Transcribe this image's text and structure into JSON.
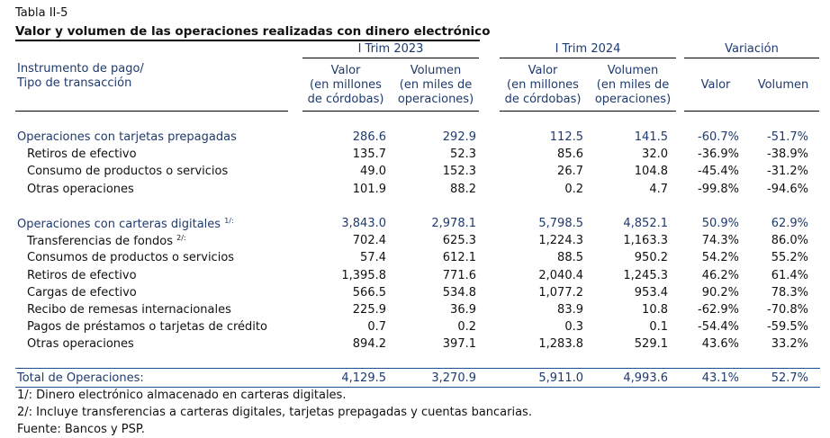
{
  "table_label": "Tabla II-5",
  "table_title": "Valor y volumen de las operaciones realizadas con dinero electrónico",
  "header": {
    "instrument_label_1": "Instrumento de pago/",
    "instrument_label_2": "Tipo de transacción",
    "period_2023": "I Trim 2023",
    "period_2024": "I Trim 2024",
    "variation": "Variación",
    "valor_1": "Valor",
    "valor_2": "(en millones",
    "valor_3": "de córdobas)",
    "volumen_1": "Volumen",
    "volumen_2": "(en miles de",
    "volumen_3": "operaciones)",
    "var_valor": "Valor",
    "var_volumen": "Volumen"
  },
  "groups": [
    {
      "label": "Operaciones con tarjetas prepagadas",
      "sup": "",
      "values": [
        "286.6",
        "292.9",
        "112.5",
        "141.5",
        "-60.7%",
        "-51.7%"
      ],
      "rows": [
        {
          "label": "Retiros de efectivo",
          "sup": "",
          "values": [
            "135.7",
            "52.3",
            "85.6",
            "32.0",
            "-36.9%",
            "-38.9%"
          ]
        },
        {
          "label": "Consumo de productos o servicios",
          "sup": "",
          "values": [
            "49.0",
            "152.3",
            "26.7",
            "104.8",
            "-45.4%",
            "-31.2%"
          ]
        },
        {
          "label": "Otras operaciones",
          "sup": "",
          "values": [
            "101.9",
            "88.2",
            "0.2",
            "4.7",
            "-99.8%",
            "-94.6%"
          ]
        }
      ]
    },
    {
      "label": "Operaciones con carteras digitales",
      "sup": "1/:",
      "values": [
        "3,843.0",
        "2,978.1",
        "5,798.5",
        "4,852.1",
        "50.9%",
        "62.9%"
      ],
      "rows": [
        {
          "label": "Transferencias de fondos",
          "sup": "2/:",
          "values": [
            "702.4",
            "625.3",
            "1,224.3",
            "1,163.3",
            "74.3%",
            "86.0%"
          ]
        },
        {
          "label": "Consumos de productos o servicios",
          "sup": "",
          "values": [
            "57.4",
            "612.1",
            "88.5",
            "950.2",
            "54.2%",
            "55.2%"
          ]
        },
        {
          "label": "Retiros de efectivo",
          "sup": "",
          "values": [
            "1,395.8",
            "771.6",
            "2,040.4",
            "1,245.3",
            "46.2%",
            "61.4%"
          ]
        },
        {
          "label": "Cargas de efectivo",
          "sup": "",
          "values": [
            "566.5",
            "534.8",
            "1,077.2",
            "953.4",
            "90.2%",
            "78.3%"
          ]
        },
        {
          "label": "Recibo de remesas internacionales",
          "sup": "",
          "values": [
            "225.9",
            "36.9",
            "83.9",
            "10.8",
            "-62.9%",
            "-70.8%"
          ]
        },
        {
          "label": "Pagos de préstamos o tarjetas de crédito",
          "sup": "",
          "values": [
            "0.7",
            "0.2",
            "0.3",
            "0.1",
            "-54.4%",
            "-59.5%"
          ]
        },
        {
          "label": "Otras operaciones",
          "sup": "",
          "values": [
            "894.2",
            "397.1",
            "1,283.8",
            "529.1",
            "43.6%",
            "33.2%"
          ]
        }
      ]
    }
  ],
  "total": {
    "label": "Total de Operaciones:",
    "values": [
      "4,129.5",
      "3,270.9",
      "5,911.0",
      "4,993.6",
      "43.1%",
      "52.7%"
    ]
  },
  "notes": [
    "1/: Dinero electrónico almacenado en carteras digitales.",
    "2/: Incluye transferencias a carteras digitales, tarjetas prepagadas y cuentas bancarias.",
    "Fuente: Bancos y PSP."
  ]
}
